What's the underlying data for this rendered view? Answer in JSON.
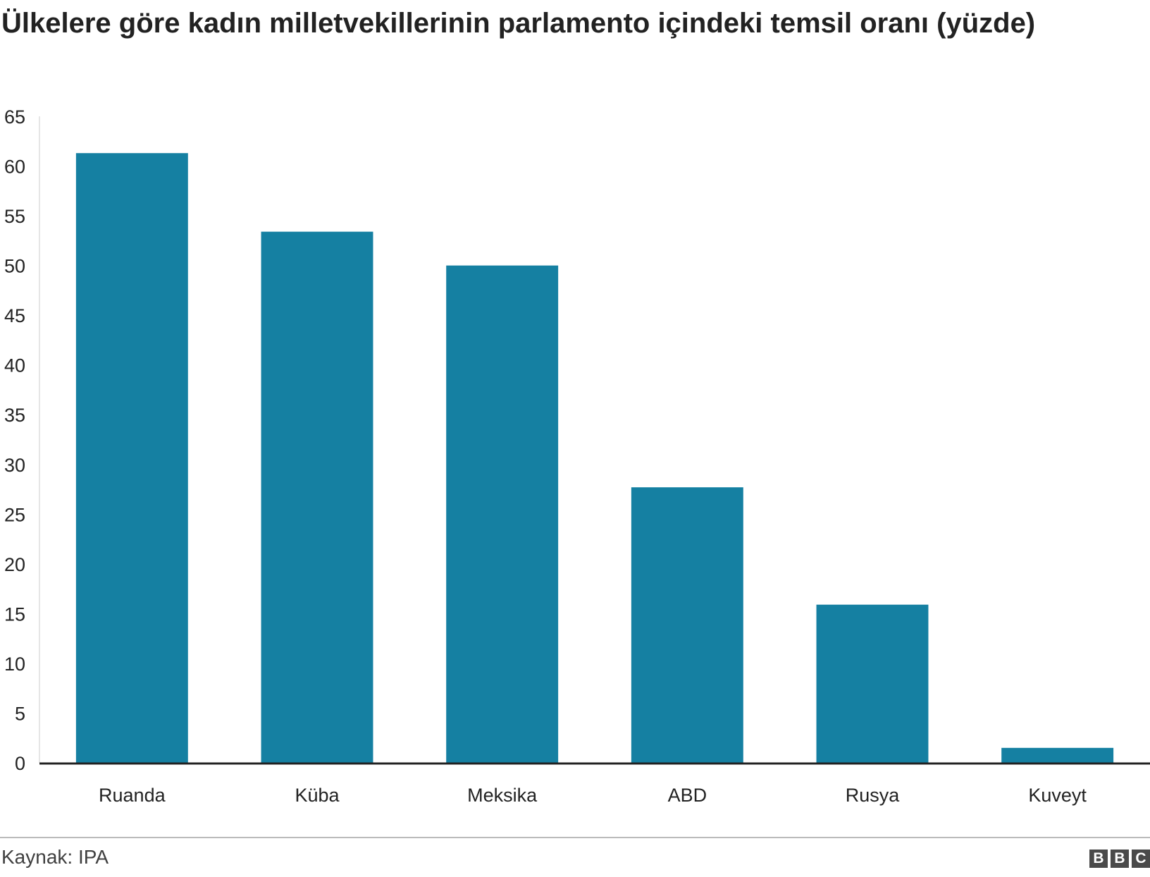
{
  "header": {
    "title": "Ülkelere göre kadın milletvekillerinin parlamento içindeki temsil oranı (yüzde)"
  },
  "footer": {
    "source": "Kaynak: IPA",
    "logo_letters": [
      "B",
      "B",
      "C"
    ]
  },
  "colors": {
    "bar": "#1580a2",
    "axis": "#222222"
  },
  "chart_data": {
    "type": "bar",
    "categories": [
      "Ruanda",
      "Küba",
      "Meksika",
      "ABD",
      "Rusya",
      "Kuveyt"
    ],
    "values": [
      61.3,
      53.4,
      50.0,
      27.7,
      15.9,
      1.5
    ],
    "ylim": [
      0,
      65
    ],
    "yticks": [
      0,
      5,
      10,
      15,
      20,
      25,
      30,
      35,
      40,
      45,
      50,
      55,
      60,
      65
    ],
    "grid": false,
    "legend": "none"
  }
}
